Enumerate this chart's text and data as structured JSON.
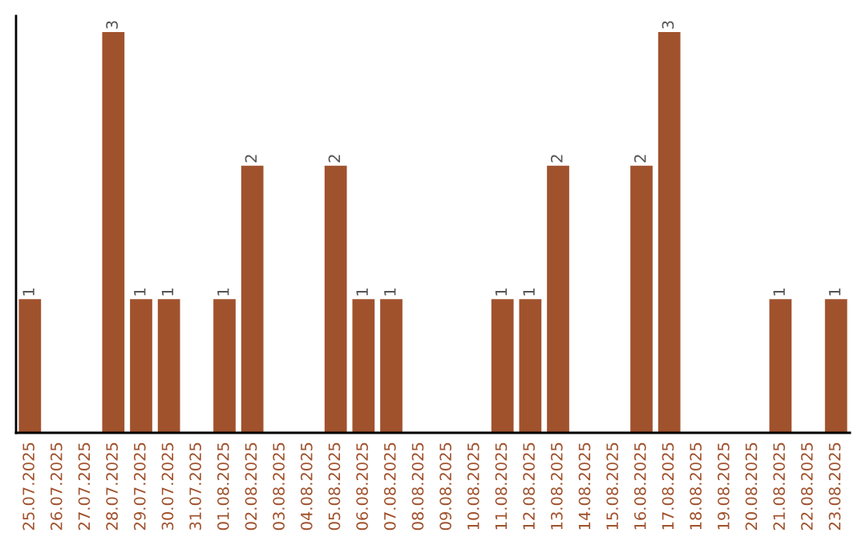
{
  "chart_data": {
    "type": "bar",
    "categories": [
      "25.07.2025",
      "26.07.2025",
      "27.07.2025",
      "28.07.2025",
      "29.07.2025",
      "30.07.2025",
      "31.07.2025",
      "01.08.2025",
      "02.08.2025",
      "03.08.2025",
      "04.08.2025",
      "05.08.2025",
      "06.08.2025",
      "07.08.2025",
      "08.08.2025",
      "09.08.2025",
      "10.08.2025",
      "11.08.2025",
      "12.08.2025",
      "13.08.2025",
      "14.08.2025",
      "15.08.2025",
      "16.08.2025",
      "17.08.2025",
      "18.08.2025",
      "19.08.2025",
      "20.08.2025",
      "21.08.2025",
      "22.08.2025",
      "23.08.2025"
    ],
    "values": [
      1,
      0,
      0,
      3,
      1,
      1,
      0,
      1,
      2,
      0,
      0,
      2,
      1,
      1,
      0,
      0,
      0,
      1,
      1,
      2,
      0,
      0,
      2,
      3,
      0,
      0,
      0,
      1,
      0,
      1
    ],
    "value_labels": [
      "1",
      null,
      null,
      "3",
      "1",
      "1",
      null,
      "1",
      "2",
      null,
      null,
      "2",
      "1",
      "1",
      null,
      null,
      null,
      "1",
      "1",
      "2",
      null,
      null,
      "2",
      "3",
      null,
      null,
      null,
      "1",
      null,
      "1"
    ],
    "color": "#a0522d",
    "tick_labels": "x",
    "grid": false,
    "legend": false
  }
}
